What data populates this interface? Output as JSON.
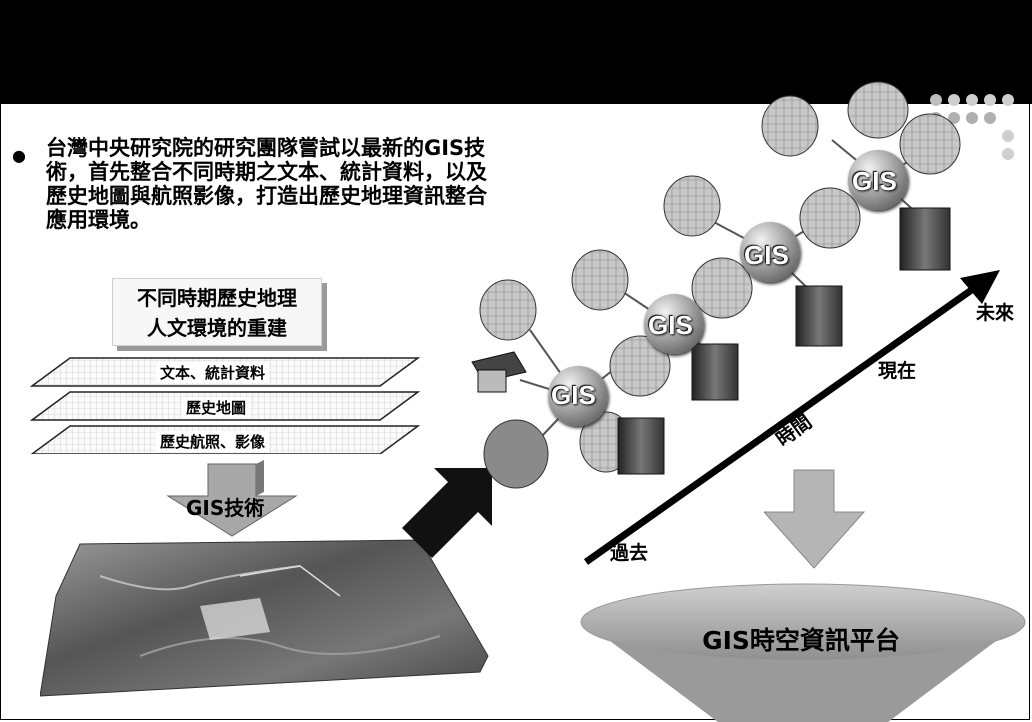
{
  "header": {
    "title": ""
  },
  "bullet": {
    "symbol": "●",
    "lines": [
      "台灣中央研究院的研究團隊嘗試以最新的GIS技",
      "術，首先整合不同時期之文本、統計資料，以及",
      "歷史地圖與航照影像，打造出歷史地理資訊整合",
      "應用環境。"
    ]
  },
  "left_box": {
    "line1": "不同時期歷史地理",
    "line2": "人文環境的重建"
  },
  "layers": [
    "文本、統計資料",
    "歷史地圖",
    "歷史航照、影像"
  ],
  "gis_tech": "GIS技術",
  "gis_label": "GIS",
  "timeline": {
    "past": "過去",
    "time": "時間",
    "present": "現在",
    "future": "未來"
  },
  "platform": "GIS時空資訊平台",
  "icons": [
    "document-stack-icon",
    "map-thumbnail-icon",
    "server-icon",
    "globe-icon",
    "terrain-map-image"
  ]
}
